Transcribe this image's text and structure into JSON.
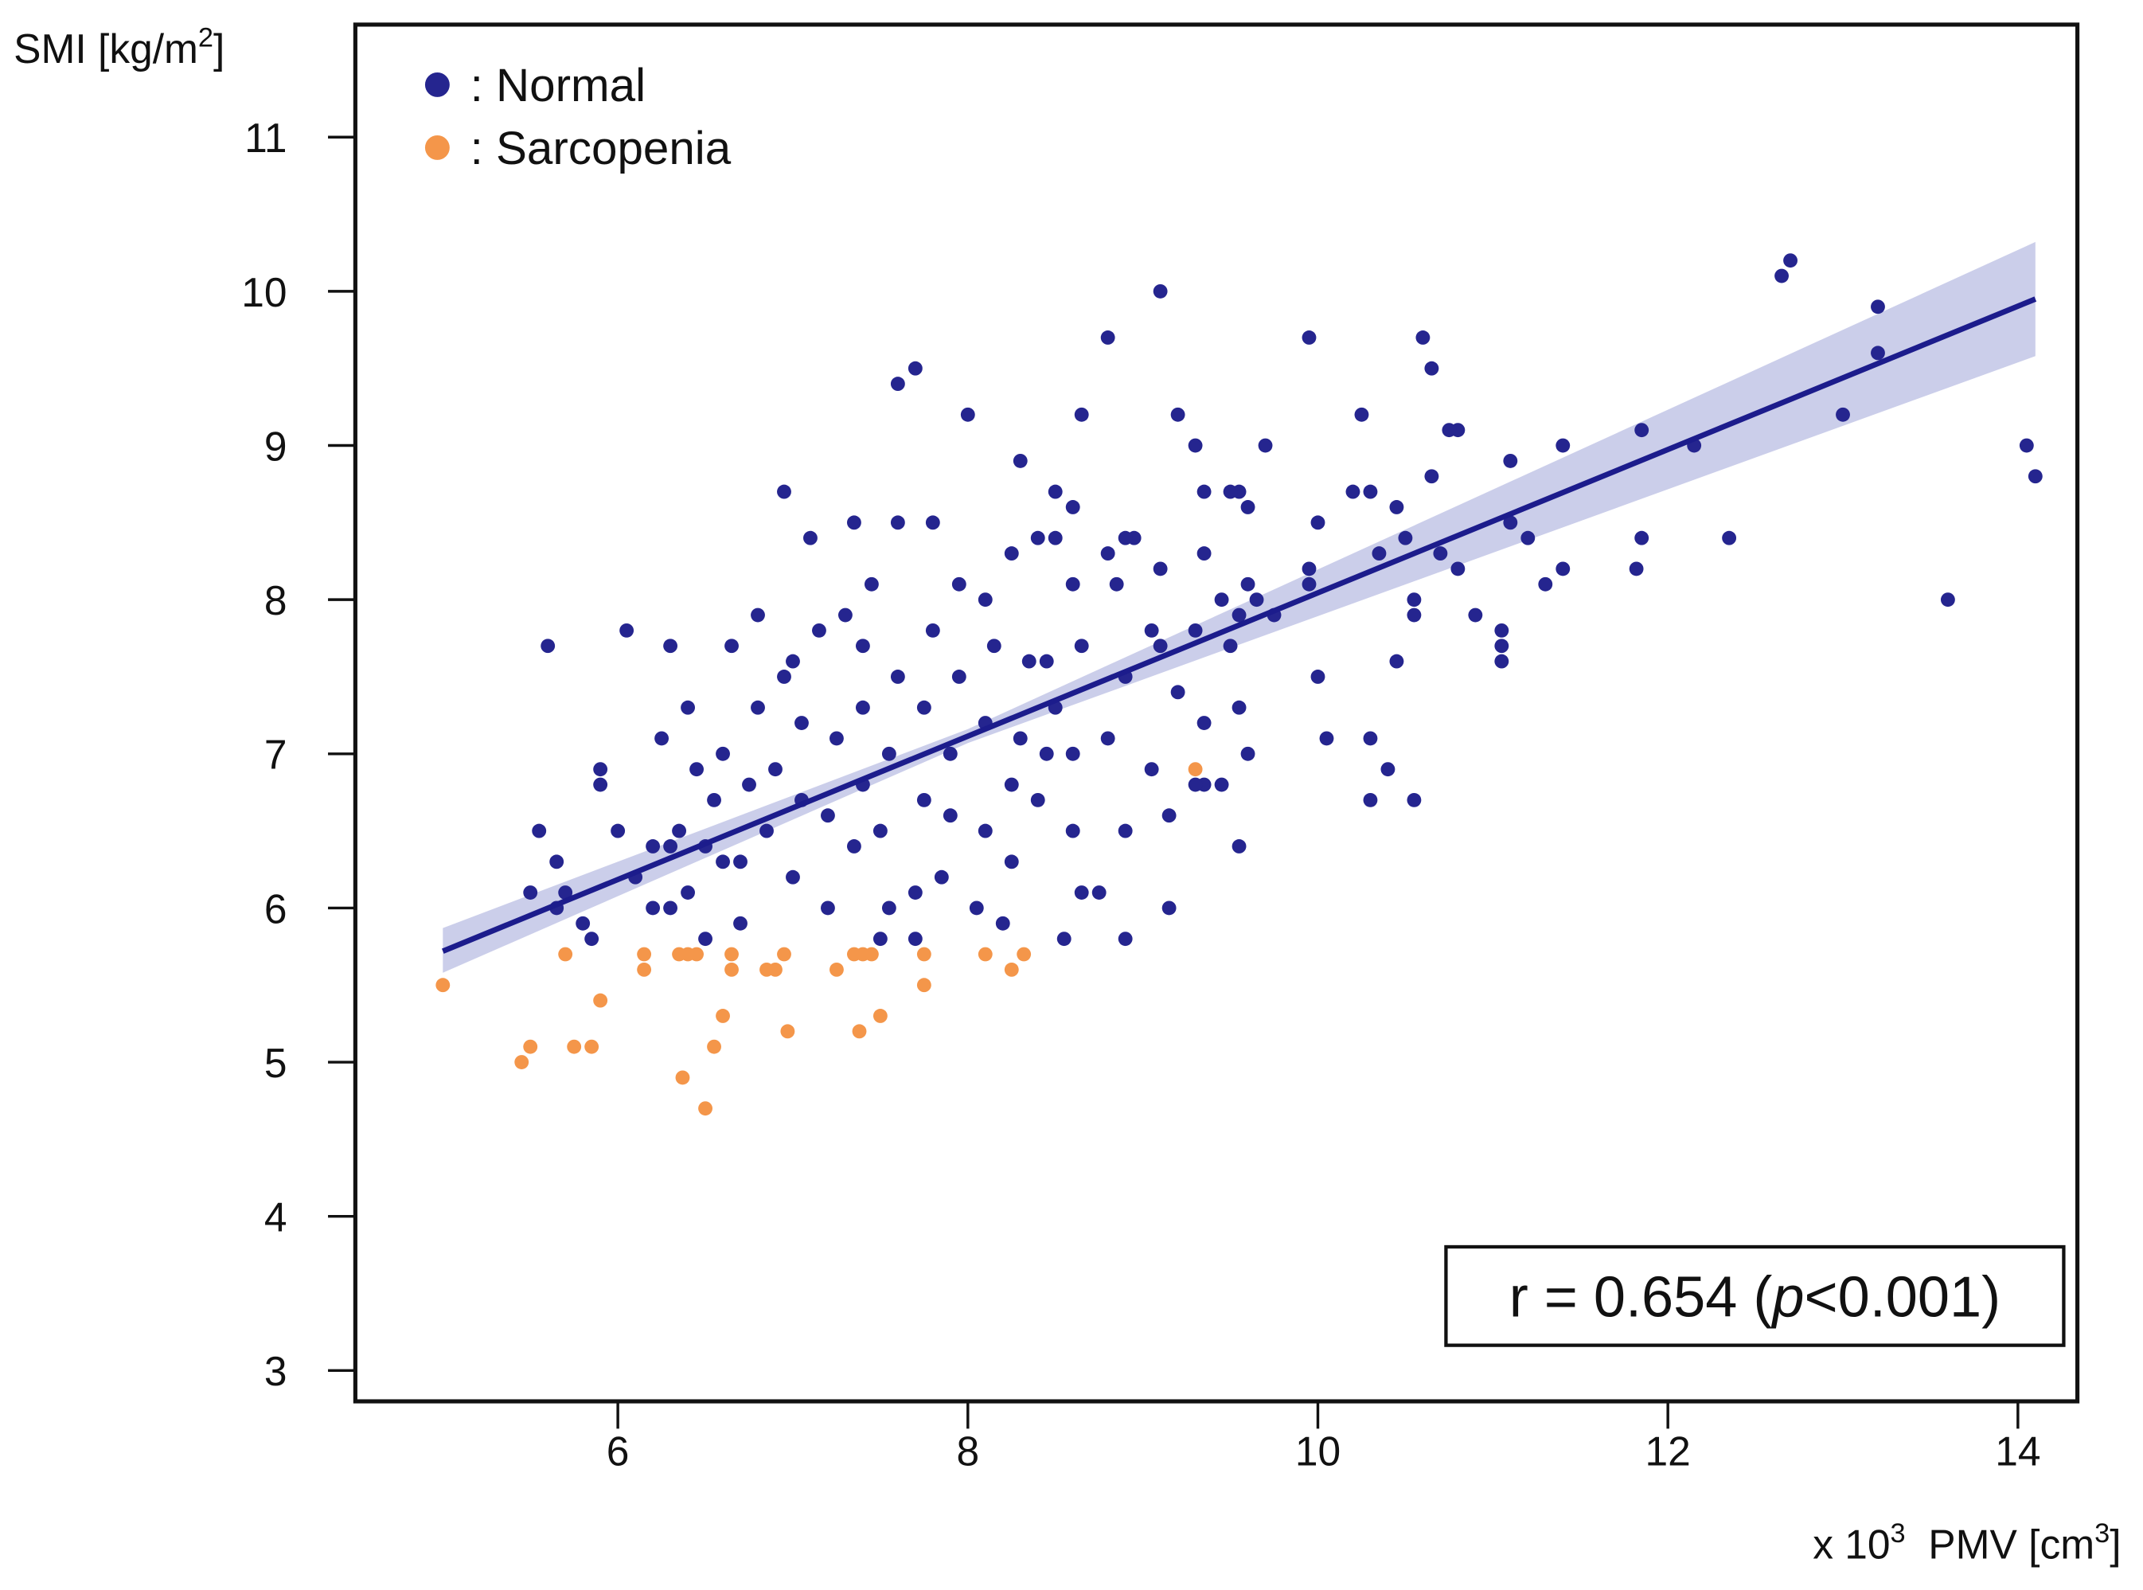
{
  "chart_data": {
    "type": "scatter",
    "ylabel": [
      "SMI [kg/m",
      "2",
      "]"
    ],
    "xlabel": [
      "x 10",
      "3",
      "  PMV [cm",
      "3",
      "]"
    ],
    "annotation": [
      "r = 0.654 (",
      "p",
      "<0.001)"
    ],
    "xlim": [
      4.5,
      14.34
    ],
    "ylim": [
      2.8,
      11.73
    ],
    "xticks": [
      6,
      8,
      10,
      12,
      14
    ],
    "yticks": [
      3,
      4,
      5,
      6,
      7,
      8,
      9,
      10,
      11
    ],
    "legend": "upper left",
    "series": [
      {
        "name": ": Normal",
        "color": "#25258f",
        "x": [
          12.65,
          12.7,
          13.2,
          13.2,
          13.0,
          14.05,
          14.1,
          13.6,
          12.35,
          12.15,
          11.85,
          11.85,
          11.82,
          11.4,
          11.4,
          11.3,
          11.2,
          11.1,
          11.1,
          11.05,
          11.05,
          11.05,
          10.9,
          10.8,
          10.75,
          10.8,
          10.7,
          10.65,
          10.6,
          10.65,
          10.55,
          10.55,
          10.5,
          10.45,
          10.45,
          10.55,
          10.35,
          10.4,
          10.3,
          10.3,
          10.25,
          10.2,
          10.3,
          10.05,
          10.0,
          10.0,
          9.95,
          9.95,
          9.95,
          9.7,
          9.65,
          9.6,
          9.6,
          9.55,
          9.5,
          9.55,
          9.45,
          9.5,
          9.6,
          9.55,
          9.55,
          9.45,
          9.35,
          9.3,
          9.35,
          9.3,
          9.35,
          9.35,
          9.3,
          9.2,
          9.2,
          9.15,
          9.15,
          9.1,
          9.1,
          9.1,
          9.05,
          9.05,
          8.95,
          8.9,
          8.85,
          8.9,
          8.9,
          8.9,
          8.8,
          8.8,
          8.8,
          8.75,
          8.65,
          8.6,
          8.6,
          8.65,
          8.6,
          8.6,
          8.65,
          8.55,
          8.5,
          8.45,
          8.5,
          8.45,
          8.4,
          8.35,
          8.4,
          8.3,
          8.25,
          8.3,
          8.25,
          8.25,
          8.2,
          8.15,
          8.1,
          8.1,
          8.1,
          8.05,
          8.0,
          7.95,
          7.95,
          7.9,
          7.9,
          7.85,
          7.8,
          7.8,
          7.75,
          7.75,
          7.7,
          7.7,
          7.7,
          7.6,
          7.6,
          7.6,
          7.55,
          7.5,
          7.55,
          7.5,
          7.45,
          7.4,
          7.4,
          7.4,
          7.35,
          7.35,
          7.3,
          7.25,
          7.2,
          7.2,
          7.15,
          7.1,
          7.05,
          7.05,
          7.0,
          6.95,
          6.95,
          6.9,
          6.85,
          6.8,
          6.8,
          6.75,
          6.7,
          6.7,
          6.65,
          6.6,
          6.6,
          6.5,
          6.5,
          6.45,
          6.4,
          6.4,
          6.35,
          6.3,
          6.25,
          6.2,
          6.2,
          6.1,
          6.05,
          6.0,
          5.9,
          5.9,
          5.85,
          5.7,
          5.65,
          5.6,
          5.55,
          5.5,
          5.65,
          5.8,
          6.3,
          6.3,
          6.55,
          7.0,
          8.5,
          9.75
        ],
        "values": [
          10.1,
          10.2,
          9.9,
          9.6,
          9.2,
          9.0,
          8.8,
          8.0,
          8.4,
          9.0,
          9.1,
          8.4,
          8.2,
          9.0,
          8.2,
          8.1,
          8.4,
          8.9,
          8.5,
          7.7,
          7.6,
          7.8,
          7.9,
          9.1,
          9.1,
          8.2,
          8.3,
          8.8,
          9.7,
          9.5,
          8.0,
          7.9,
          8.4,
          8.6,
          7.6,
          6.7,
          8.3,
          6.9,
          7.1,
          6.7,
          9.2,
          8.7,
          8.7,
          7.1,
          7.5,
          8.5,
          9.7,
          8.2,
          8.1,
          9.0,
          8.0,
          8.1,
          8.6,
          8.7,
          8.7,
          7.9,
          8.0,
          7.7,
          7.0,
          7.3,
          6.4,
          6.8,
          8.7,
          9.0,
          8.3,
          7.8,
          7.2,
          6.8,
          6.8,
          9.2,
          7.4,
          6.6,
          6.0,
          10.0,
          8.2,
          7.7,
          7.8,
          6.9,
          8.4,
          8.4,
          8.1,
          7.5,
          6.5,
          5.8,
          9.7,
          8.3,
          7.1,
          6.1,
          9.2,
          8.6,
          8.1,
          7.7,
          7.0,
          6.5,
          6.1,
          5.8,
          8.4,
          7.6,
          7.3,
          7.0,
          6.7,
          7.6,
          8.4,
          8.9,
          8.3,
          7.1,
          6.8,
          6.3,
          5.9,
          7.7,
          8.0,
          7.2,
          6.5,
          6.0,
          9.2,
          8.1,
          7.5,
          7.0,
          6.6,
          6.2,
          8.5,
          7.8,
          7.3,
          6.7,
          6.1,
          5.8,
          9.5,
          9.4,
          8.5,
          7.5,
          7.0,
          6.5,
          6.0,
          5.8,
          8.1,
          7.7,
          7.3,
          6.8,
          6.4,
          8.5,
          7.9,
          7.1,
          6.6,
          6.0,
          7.8,
          8.4,
          7.2,
          6.7,
          6.2,
          8.7,
          7.5,
          6.9,
          6.5,
          7.9,
          7.3,
          6.8,
          6.3,
          5.9,
          7.7,
          7.0,
          6.3,
          6.4,
          5.8,
          6.9,
          7.3,
          6.1,
          6.5,
          7.7,
          7.1,
          6.4,
          6.0,
          6.2,
          7.8,
          6.5,
          6.8,
          6.9,
          5.8,
          6.1,
          6.3,
          7.7,
          6.5,
          6.1,
          6.0,
          5.9,
          6.0,
          6.4,
          6.7,
          7.6,
          8.7,
          7.9
        ]
      },
      {
        "name": ": Sarcopenia",
        "color": "#f4964a",
        "x": [
          5.0,
          5.45,
          5.5,
          5.7,
          5.75,
          5.85,
          5.9,
          6.15,
          6.15,
          6.35,
          6.4,
          6.45,
          6.37,
          6.5,
          6.55,
          6.6,
          6.65,
          6.65,
          6.85,
          6.9,
          6.95,
          6.97,
          7.25,
          7.35,
          7.4,
          7.45,
          7.38,
          7.5,
          7.75,
          7.75,
          8.1,
          8.25,
          8.32,
          9.3
        ],
        "values": [
          5.5,
          5.0,
          5.1,
          5.7,
          5.1,
          5.1,
          5.4,
          5.7,
          5.6,
          5.7,
          5.7,
          5.7,
          4.9,
          4.7,
          5.1,
          5.3,
          5.7,
          5.6,
          5.6,
          5.6,
          5.7,
          5.2,
          5.6,
          5.7,
          5.7,
          5.7,
          5.2,
          5.3,
          5.7,
          5.5,
          5.7,
          5.6,
          5.7,
          6.9
        ]
      }
    ],
    "fit": {
      "color": "#1c1c8c",
      "x": [
        5.0,
        14.1
      ],
      "values": [
        5.72,
        9.95
      ]
    },
    "band": {
      "color": "#b9bde3",
      "x": [
        5.0,
        8.0,
        14.1
      ],
      "lower": [
        5.58,
        7.07,
        9.58
      ],
      "upper": [
        5.87,
        7.16,
        10.32
      ]
    }
  }
}
